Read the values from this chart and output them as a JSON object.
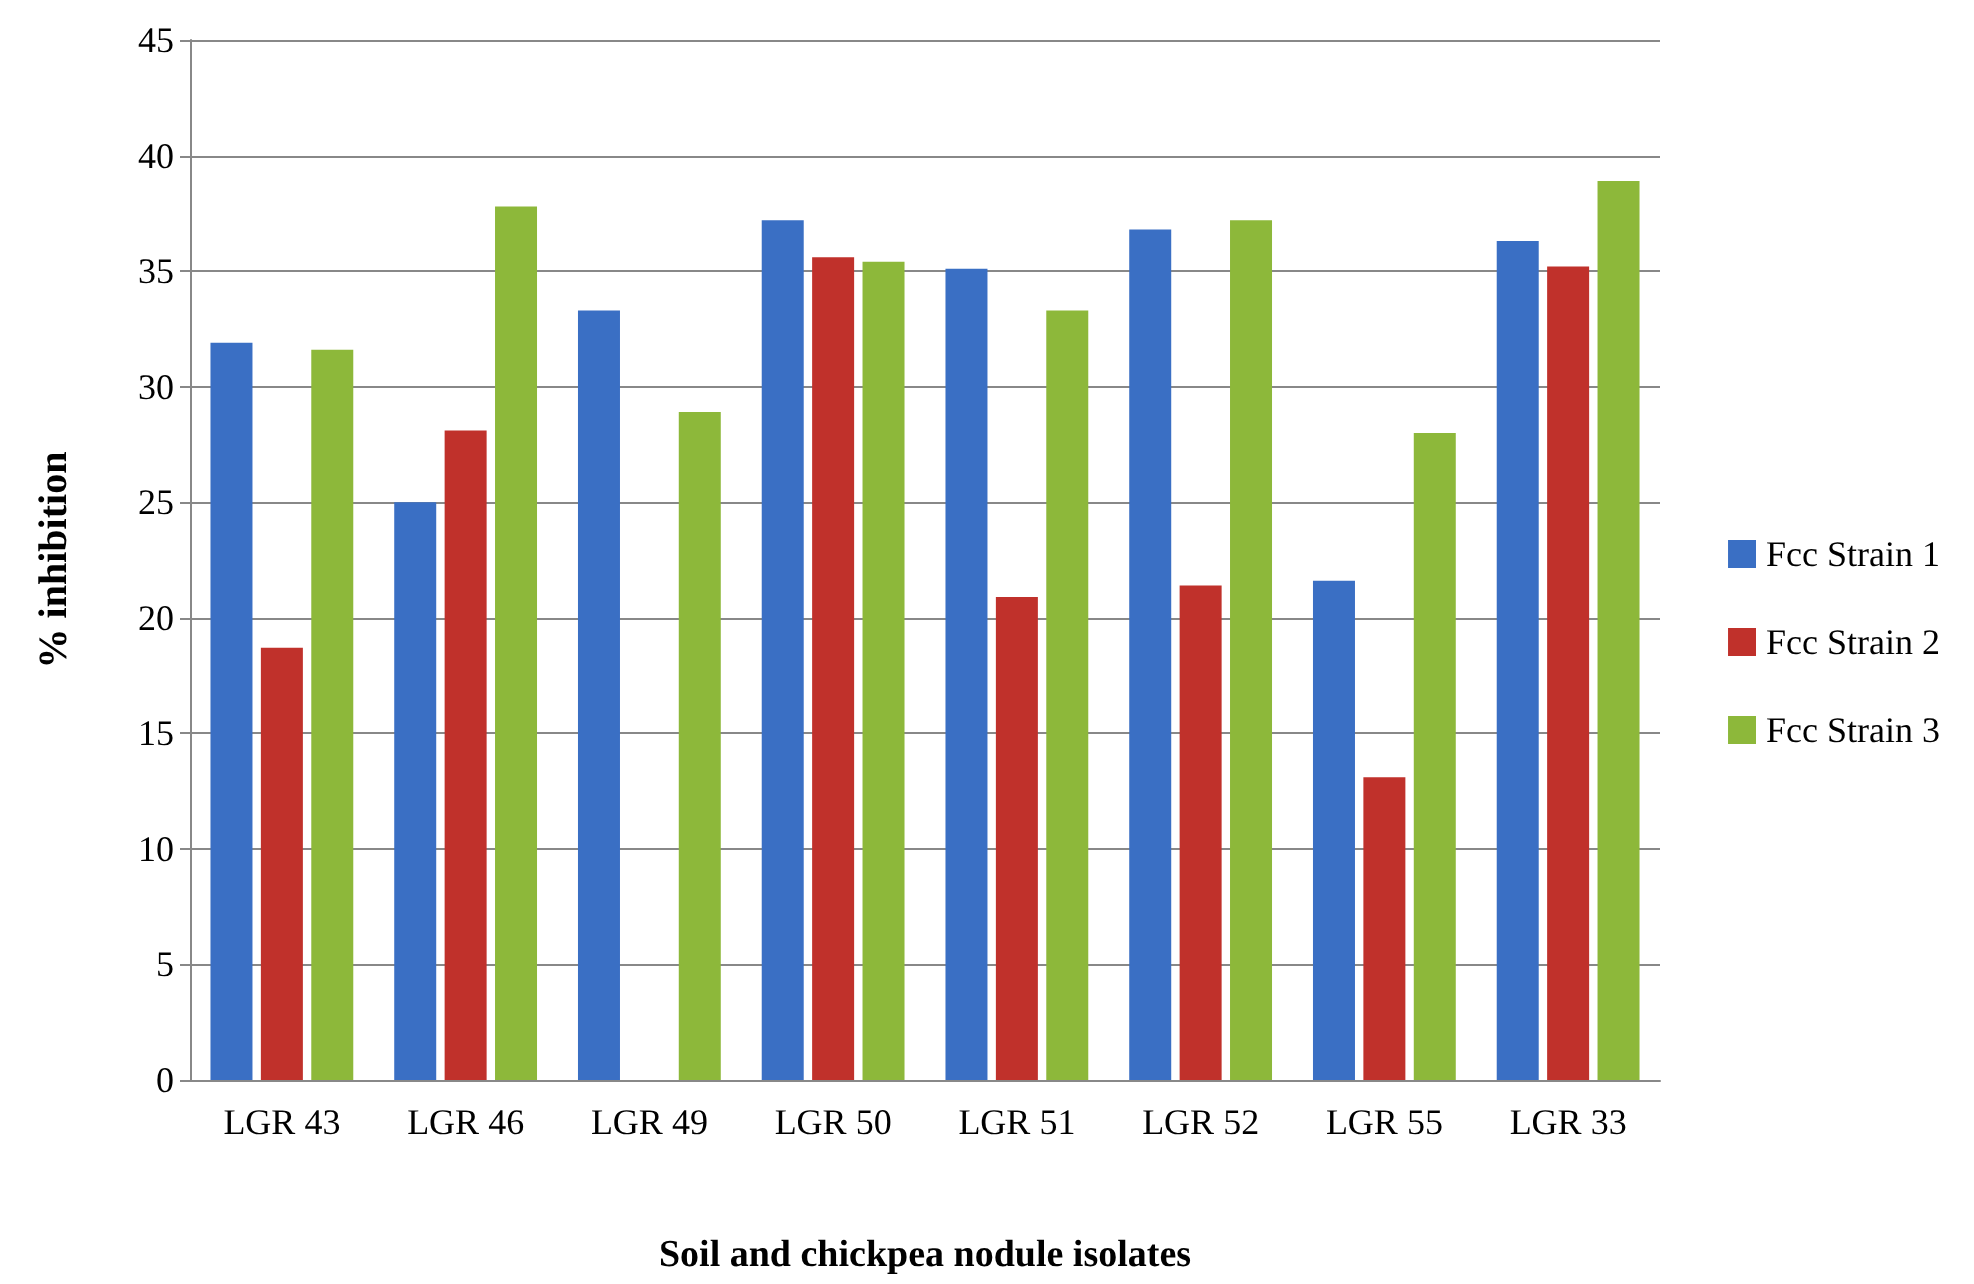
{
  "chart_data": {
    "type": "bar",
    "xlabel": "Soil and chickpea nodule isolates",
    "ylabel": "% inhibition",
    "categories": [
      "LGR 43",
      "LGR 46",
      "LGR 49",
      "LGR 50",
      "LGR 51",
      "LGR 52",
      "LGR 55",
      "LGR 33"
    ],
    "series": [
      {
        "name": "Fcc Strain 1",
        "color": "#3a6fc4",
        "values": [
          31.9,
          25.0,
          33.3,
          37.2,
          35.1,
          36.8,
          21.6,
          36.3
        ]
      },
      {
        "name": "Fcc Strain 2",
        "color": "#c0312b",
        "values": [
          18.7,
          28.1,
          0,
          35.6,
          20.9,
          21.4,
          13.1,
          35.2
        ]
      },
      {
        "name": "Fcc Strain 3",
        "color": "#8db83a",
        "values": [
          31.6,
          37.8,
          28.9,
          35.4,
          33.3,
          37.2,
          28.0,
          38.9
        ]
      }
    ],
    "ylim": [
      0,
      45
    ],
    "yticks": [
      0,
      5,
      10,
      15,
      20,
      25,
      30,
      35,
      40,
      45
    ],
    "grid": "y",
    "legend": "right"
  }
}
